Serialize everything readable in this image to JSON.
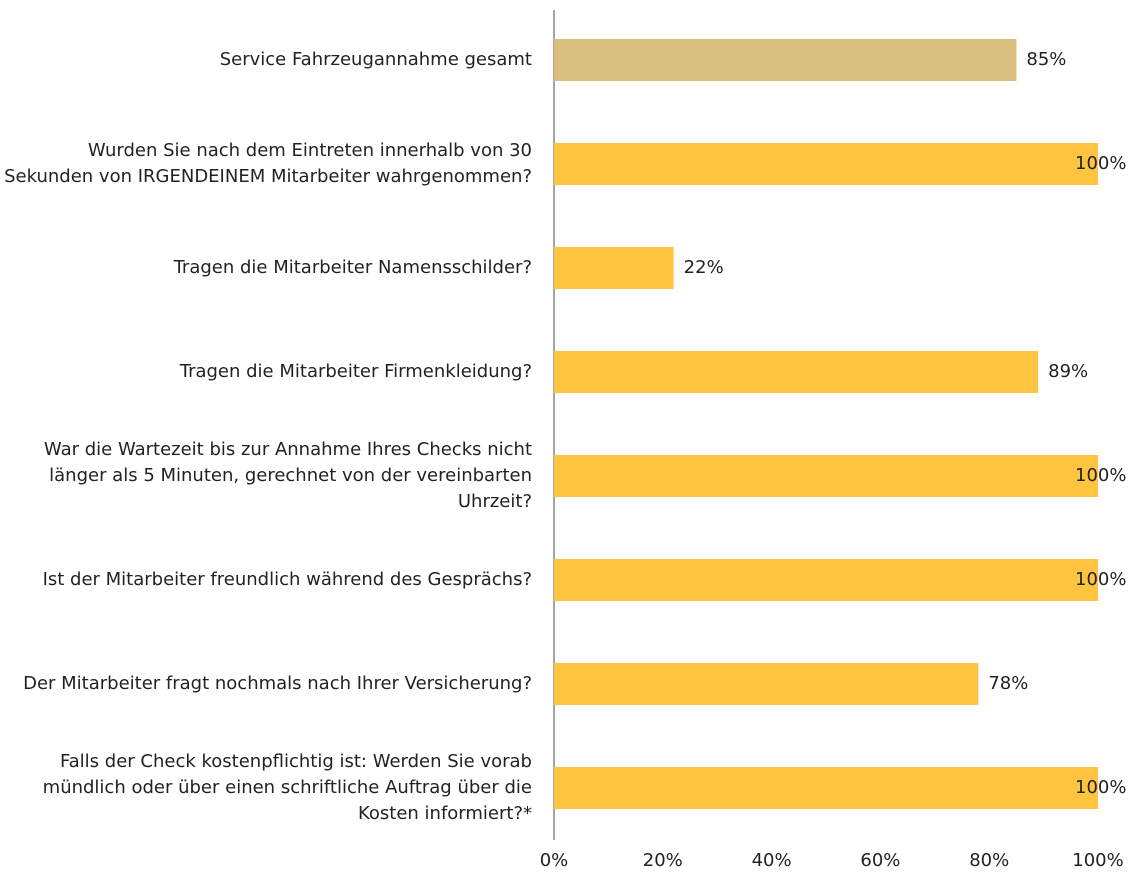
{
  "chart_data": {
    "type": "barh",
    "categories": [
      "Service Fahrzeugannahme gesamt",
      "Wurden Sie nach dem Eintreten innerhalb von 30 Sekunden von IRGENDEINEM Mitarbeiter wahrgenommen?",
      "Tragen die Mitarbeiter Namensschilder?",
      "Tragen die Mitarbeiter Firmenkleidung?",
      "War die Wartezeit bis zur Annahme Ihres Checks nicht länger als 5 Minuten, gerechnet von der vereinbarten Uhrzeit?",
      "Ist der Mitarbeiter freundlich während des Gesprächs?",
      "Der Mitarbeiter fragt nochmals nach Ihrer Versicherung?",
      "Falls der Check kostenpflichtig ist: Werden Sie vorab mündlich oder über einen schriftliche Auftrag über die Kosten informiert?*"
    ],
    "values": [
      85,
      100,
      22,
      89,
      100,
      100,
      78,
      100
    ],
    "value_labels": [
      "85%",
      "100%",
      "22%",
      "89%",
      "100%",
      "100%",
      "78%",
      "100%"
    ],
    "colors": [
      "#d9bf7f",
      "#ffc540",
      "#ffc540",
      "#ffc540",
      "#ffc540",
      "#ffc540",
      "#ffc540",
      "#ffc540"
    ],
    "xlim": [
      0,
      100
    ],
    "xticks": [
      {
        "value": 0,
        "label": "0%"
      },
      {
        "value": 20,
        "label": "20%"
      },
      {
        "value": 40,
        "label": "40%"
      },
      {
        "value": 60,
        "label": "60%"
      },
      {
        "value": 80,
        "label": "80%"
      },
      {
        "value": 100,
        "label": "100%"
      }
    ]
  }
}
